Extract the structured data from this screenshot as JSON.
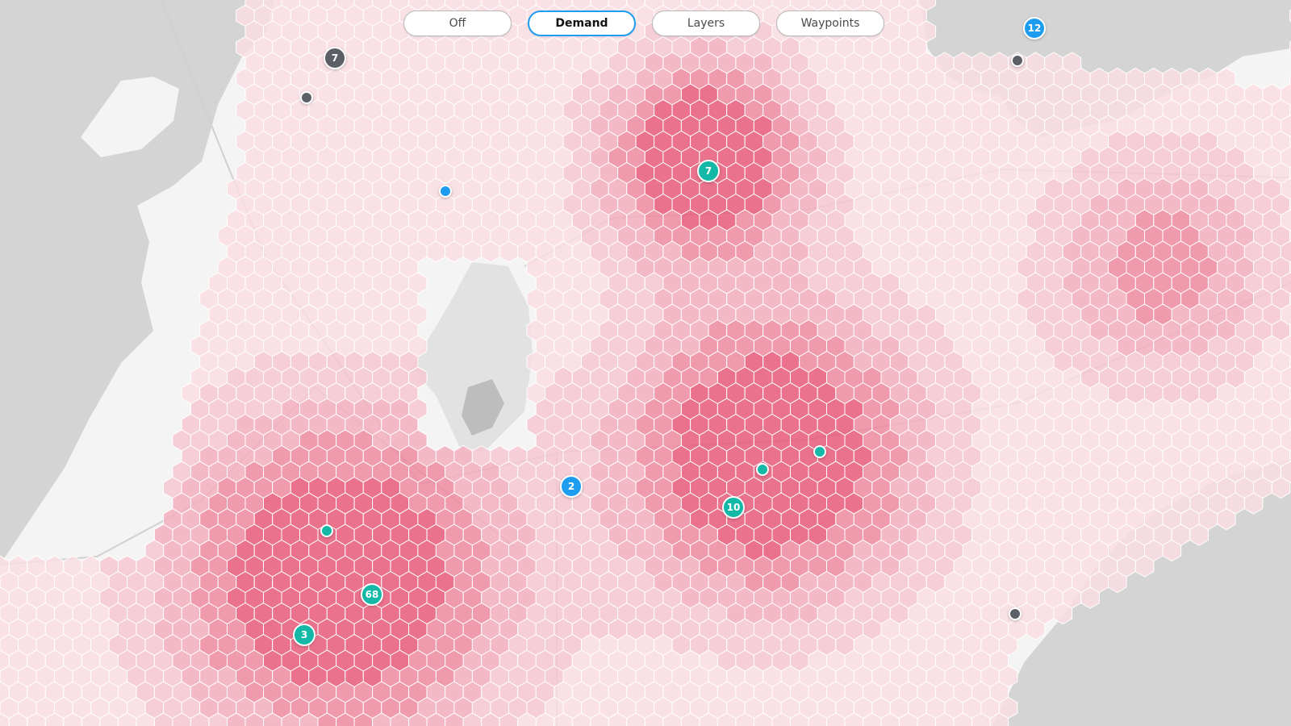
{
  "toolbar": {
    "buttons": [
      {
        "label": "Off",
        "active": false
      },
      {
        "label": "Demand",
        "active": true
      },
      {
        "label": "Layers",
        "active": false
      },
      {
        "label": "Waypoints",
        "active": false
      }
    ]
  },
  "colors": {
    "accent": "#1e9cf0",
    "vehicle_teal": "#14b8a6",
    "vehicle_grey": "#5c5f66",
    "demand_high": "#e85a7a",
    "demand_low": "#f9dde3",
    "water": "#d6d6d6",
    "land": "#f2f2f2"
  },
  "markers": [
    {
      "label": "7",
      "color": "teal"
    },
    {
      "label": "68",
      "color": "teal"
    },
    {
      "label": "3",
      "color": "teal"
    },
    {
      "label": "10",
      "color": "teal"
    },
    {
      "label": "",
      "color": "teal"
    },
    {
      "label": "",
      "color": "teal"
    },
    {
      "label": "",
      "color": "teal"
    },
    {
      "label": "2",
      "color": "blue"
    },
    {
      "label": "12",
      "color": "blue"
    },
    {
      "label": "",
      "color": "blue"
    },
    {
      "label": "7",
      "color": "grey"
    },
    {
      "label": "",
      "color": "grey"
    },
    {
      "label": "",
      "color": "grey"
    },
    {
      "label": "",
      "color": "grey"
    }
  ]
}
